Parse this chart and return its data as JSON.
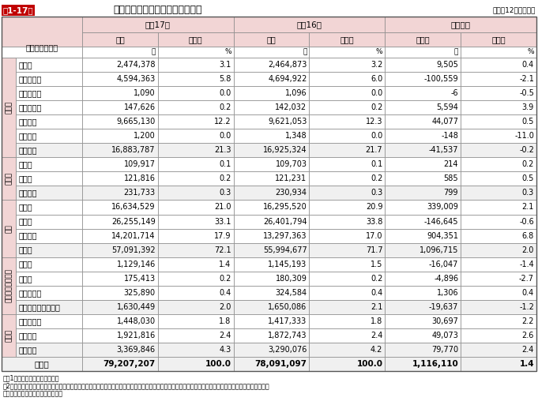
{
  "title_box": "第1-17表",
  "title_text": "用途別及び車種別自動車保有台数",
  "subtitle": "（各年12月末現在）",
  "col_category": "用途別・車種別",
  "col_h17": "平成17年",
  "col_h16": "平成16年",
  "col_yoy": "対前年比",
  "col_units": [
    "台数",
    "構成率",
    "台数",
    "構成率",
    "増減数",
    "増減率"
  ],
  "unit_labels": [
    "台",
    "%",
    "台",
    "%",
    "台",
    "%"
  ],
  "sections": [
    {
      "category": "貨物用",
      "rows": [
        [
          "普通車",
          "2,474,378",
          "3.1",
          "2,464,873",
          "3.2",
          "9,505",
          "0.4"
        ],
        [
          "小型四輪車",
          "4,594,363",
          "5.8",
          "4,694,922",
          "6.0",
          "-100,559",
          "-2.1"
        ],
        [
          "小型三輪車",
          "1,090",
          "0.0",
          "1,096",
          "0.0",
          "-6",
          "-0.5"
        ],
        [
          "被けん引車",
          "147,626",
          "0.2",
          "142,032",
          "0.2",
          "5,594",
          "3.9"
        ],
        [
          "軽四輪車",
          "9,665,130",
          "12.2",
          "9,621,053",
          "12.3",
          "44,077",
          "0.5"
        ],
        [
          "軽三輪車",
          "1,200",
          "0.0",
          "1,348",
          "0.0",
          "-148",
          "-11.0"
        ]
      ],
      "subtotal": [
        "貨物用計",
        "16,883,787",
        "21.3",
        "16,925,324",
        "21.7",
        "-41,537",
        "-0.2"
      ]
    },
    {
      "category": "乗合用",
      "rows": [
        [
          "普通車",
          "109,917",
          "0.1",
          "109,703",
          "0.1",
          "214",
          "0.2"
        ],
        [
          "小型車",
          "121,816",
          "0.2",
          "121,231",
          "0.2",
          "585",
          "0.5"
        ]
      ],
      "subtotal": [
        "乗合用計",
        "231,733",
        "0.3",
        "230,934",
        "0.3",
        "799",
        "0.3"
      ]
    },
    {
      "category": "乗用",
      "rows": [
        [
          "普通車",
          "16,634,529",
          "21.0",
          "16,295,520",
          "20.9",
          "339,009",
          "2.1"
        ],
        [
          "小型車",
          "26,255,149",
          "33.1",
          "26,401,794",
          "33.8",
          "-146,645",
          "-0.6"
        ],
        [
          "軽四輪車",
          "14,201,714",
          "17.9",
          "13,297,363",
          "17.0",
          "904,351",
          "6.8"
        ]
      ],
      "subtotal": [
        "乗用計",
        "57,091,392",
        "72.1",
        "55,994,677",
        "71.7",
        "1,096,715",
        "2.0"
      ]
    },
    {
      "category": "特種（殊）用途用",
      "rows": [
        [
          "普通車",
          "1,129,146",
          "1.4",
          "1,145,193",
          "1.5",
          "-16,047",
          "-1.4"
        ],
        [
          "小型車",
          "175,413",
          "0.2",
          "180,309",
          "0.2",
          "-4,896",
          "-2.7"
        ],
        [
          "大型特殊車",
          "325,890",
          "0.4",
          "324,584",
          "0.4",
          "1,306",
          "0.4"
        ]
      ],
      "subtotal": [
        "特種（殊）用途用計",
        "1,630,449",
        "2.0",
        "1,650,086",
        "2.1",
        "-19,637",
        "-1.2"
      ]
    },
    {
      "category": "二輪車",
      "rows": [
        [
          "小型二輪車",
          "1,448,030",
          "1.8",
          "1,417,333",
          "1.8",
          "30,697",
          "2.2"
        ],
        [
          "軽二輪車",
          "1,921,816",
          "2.4",
          "1,872,743",
          "2.4",
          "49,073",
          "2.6"
        ]
      ],
      "subtotal": [
        "二輪車計",
        "3,369,846",
        "4.3",
        "3,290,076",
        "4.2",
        "79,770",
        "2.4"
      ]
    }
  ],
  "total": [
    "総　計",
    "79,207,207",
    "100.0",
    "78,091,097",
    "100.0",
    "1,116,110",
    "1.4"
  ],
  "notes": [
    "注　1　国土交通省資料による。",
    "　2　特種用途自動車とは、緊急車、冷蔵・冷凍車のように特殊の目的に使用されるものをいい、大型特殊自動車とは、除雪車、ブルドーザー等のように特殊",
    "　　　の構造を有するものをいう。"
  ]
}
